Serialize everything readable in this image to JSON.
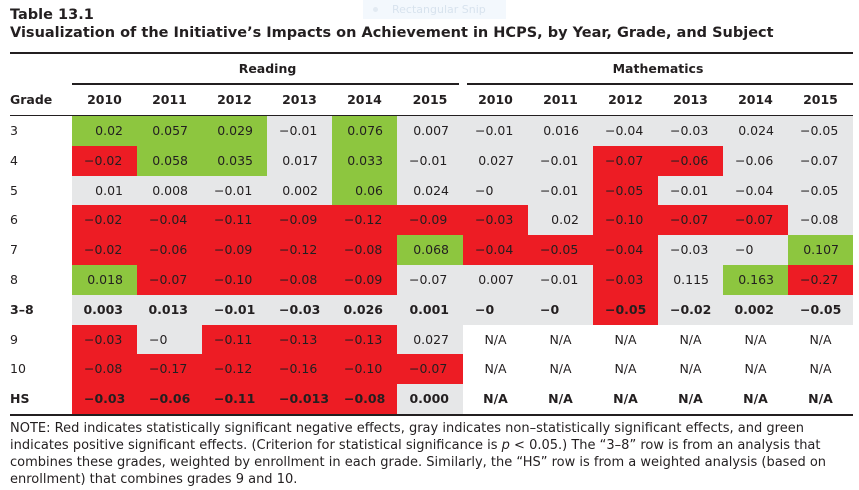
{
  "overlay": {
    "label": "Rectangular Snip"
  },
  "table": {
    "number": "Table 13.1",
    "title": "Visualization of the Initiative’s Impacts on Achievement in HCPS, by Year, Grade, and Subject",
    "grade_header": "Grade",
    "groups": [
      {
        "label": "Reading",
        "years": [
          "2010",
          "2011",
          "2012",
          "2013",
          "2014",
          "2015"
        ]
      },
      {
        "label": "Mathematics",
        "years": [
          "2010",
          "2011",
          "2012",
          "2013",
          "2014",
          "2015"
        ]
      }
    ],
    "legend_colors": {
      "negative": "#ed1c24",
      "nonsignificant": "#e6e7e8",
      "positive": "#8dc63f"
    },
    "rows": [
      {
        "grade": "3",
        "bold": false,
        "cells": [
          {
            "v": "0.02",
            "s": "pos"
          },
          {
            "v": "0.057",
            "s": "pos"
          },
          {
            "v": "0.029",
            "s": "pos"
          },
          {
            "v": "−0.01",
            "s": "ns"
          },
          {
            "v": "0.076",
            "s": "pos"
          },
          {
            "v": "0.007",
            "s": "ns"
          },
          {
            "v": "−0.01",
            "s": "ns"
          },
          {
            "v": "0.016",
            "s": "ns"
          },
          {
            "v": "−0.04",
            "s": "ns"
          },
          {
            "v": "−0.03",
            "s": "ns"
          },
          {
            "v": "0.024",
            "s": "ns"
          },
          {
            "v": "−0.05",
            "s": "ns"
          }
        ]
      },
      {
        "grade": "4",
        "bold": false,
        "cells": [
          {
            "v": "−0.02",
            "s": "neg"
          },
          {
            "v": "0.058",
            "s": "pos"
          },
          {
            "v": "0.035",
            "s": "pos"
          },
          {
            "v": "0.017",
            "s": "ns"
          },
          {
            "v": "0.033",
            "s": "pos"
          },
          {
            "v": "−0.01",
            "s": "ns"
          },
          {
            "v": "0.027",
            "s": "ns"
          },
          {
            "v": "−0.01",
            "s": "ns"
          },
          {
            "v": "−0.07",
            "s": "neg"
          },
          {
            "v": "−0.06",
            "s": "neg"
          },
          {
            "v": "−0.06",
            "s": "ns"
          },
          {
            "v": "−0.07",
            "s": "ns"
          }
        ]
      },
      {
        "grade": "5",
        "bold": false,
        "cells": [
          {
            "v": "0.01",
            "s": "ns"
          },
          {
            "v": "0.008",
            "s": "ns"
          },
          {
            "v": "−0.01",
            "s": "ns"
          },
          {
            "v": "0.002",
            "s": "ns"
          },
          {
            "v": "0.06",
            "s": "pos"
          },
          {
            "v": "0.024",
            "s": "ns"
          },
          {
            "v": "−0",
            "s": "ns"
          },
          {
            "v": "−0.01",
            "s": "ns"
          },
          {
            "v": "−0.05",
            "s": "neg"
          },
          {
            "v": "−0.01",
            "s": "ns"
          },
          {
            "v": "−0.04",
            "s": "ns"
          },
          {
            "v": "−0.05",
            "s": "ns"
          }
        ]
      },
      {
        "grade": "6",
        "bold": false,
        "cells": [
          {
            "v": "−0.02",
            "s": "neg"
          },
          {
            "v": "−0.04",
            "s": "neg"
          },
          {
            "v": "−0.11",
            "s": "neg"
          },
          {
            "v": "−0.09",
            "s": "neg"
          },
          {
            "v": "−0.12",
            "s": "neg"
          },
          {
            "v": "−0.09",
            "s": "neg"
          },
          {
            "v": "−0.03",
            "s": "neg"
          },
          {
            "v": "0.02",
            "s": "ns"
          },
          {
            "v": "−0.10",
            "s": "neg"
          },
          {
            "v": "−0.07",
            "s": "neg"
          },
          {
            "v": "−0.07",
            "s": "neg"
          },
          {
            "v": "−0.08",
            "s": "ns"
          }
        ]
      },
      {
        "grade": "7",
        "bold": false,
        "cells": [
          {
            "v": "−0.02",
            "s": "neg"
          },
          {
            "v": "−0.06",
            "s": "neg"
          },
          {
            "v": "−0.09",
            "s": "neg"
          },
          {
            "v": "−0.12",
            "s": "neg"
          },
          {
            "v": "−0.08",
            "s": "neg"
          },
          {
            "v": "0.068",
            "s": "pos"
          },
          {
            "v": "−0.04",
            "s": "neg"
          },
          {
            "v": "−0.05",
            "s": "neg"
          },
          {
            "v": "−0.04",
            "s": "neg"
          },
          {
            "v": "−0.03",
            "s": "ns"
          },
          {
            "v": "−0",
            "s": "ns"
          },
          {
            "v": "0.107",
            "s": "pos"
          }
        ]
      },
      {
        "grade": "8",
        "bold": false,
        "cells": [
          {
            "v": "0.018",
            "s": "pos"
          },
          {
            "v": "−0.07",
            "s": "neg"
          },
          {
            "v": "−0.10",
            "s": "neg"
          },
          {
            "v": "−0.08",
            "s": "neg"
          },
          {
            "v": "−0.09",
            "s": "neg"
          },
          {
            "v": "−0.07",
            "s": "ns"
          },
          {
            "v": "0.007",
            "s": "ns"
          },
          {
            "v": "−0.01",
            "s": "ns"
          },
          {
            "v": "−0.03",
            "s": "neg"
          },
          {
            "v": "0.115",
            "s": "ns"
          },
          {
            "v": "0.163",
            "s": "pos"
          },
          {
            "v": "−0.27",
            "s": "neg"
          }
        ]
      },
      {
        "grade": "3–8",
        "bold": true,
        "cells": [
          {
            "v": "0.003",
            "s": "ns"
          },
          {
            "v": "0.013",
            "s": "ns"
          },
          {
            "v": "−0.01",
            "s": "ns"
          },
          {
            "v": "−0.03",
            "s": "ns"
          },
          {
            "v": "0.026",
            "s": "ns"
          },
          {
            "v": "0.001",
            "s": "ns"
          },
          {
            "v": "−0",
            "s": "ns"
          },
          {
            "v": "−0",
            "s": "ns"
          },
          {
            "v": "−0.05",
            "s": "neg"
          },
          {
            "v": "−0.02",
            "s": "ns"
          },
          {
            "v": "0.002",
            "s": "ns"
          },
          {
            "v": "−0.05",
            "s": "ns"
          }
        ]
      },
      {
        "grade": "9",
        "bold": false,
        "cells": [
          {
            "v": "−0.03",
            "s": "neg"
          },
          {
            "v": "−0",
            "s": "ns"
          },
          {
            "v": "−0.11",
            "s": "neg"
          },
          {
            "v": "−0.13",
            "s": "neg"
          },
          {
            "v": "−0.13",
            "s": "neg"
          },
          {
            "v": "0.027",
            "s": "ns"
          },
          {
            "v": "N/A",
            "s": "na"
          },
          {
            "v": "N/A",
            "s": "na"
          },
          {
            "v": "N/A",
            "s": "na"
          },
          {
            "v": "N/A",
            "s": "na"
          },
          {
            "v": "N/A",
            "s": "na"
          },
          {
            "v": "N/A",
            "s": "na"
          }
        ]
      },
      {
        "grade": "10",
        "bold": false,
        "cells": [
          {
            "v": "−0.08",
            "s": "neg"
          },
          {
            "v": "−0.17",
            "s": "neg"
          },
          {
            "v": "−0.12",
            "s": "neg"
          },
          {
            "v": "−0.16",
            "s": "neg"
          },
          {
            "v": "−0.10",
            "s": "neg"
          },
          {
            "v": "−0.07",
            "s": "neg"
          },
          {
            "v": "N/A",
            "s": "na"
          },
          {
            "v": "N/A",
            "s": "na"
          },
          {
            "v": "N/A",
            "s": "na"
          },
          {
            "v": "N/A",
            "s": "na"
          },
          {
            "v": "N/A",
            "s": "na"
          },
          {
            "v": "N/A",
            "s": "na"
          }
        ]
      },
      {
        "grade": "HS",
        "bold": true,
        "cells": [
          {
            "v": "−0.03",
            "s": "neg"
          },
          {
            "v": "−0.06",
            "s": "neg"
          },
          {
            "v": "−0.11",
            "s": "neg"
          },
          {
            "v": "−0.013",
            "s": "neg"
          },
          {
            "v": "−0.08",
            "s": "neg"
          },
          {
            "v": "0.000",
            "s": "ns"
          },
          {
            "v": "N/A",
            "s": "na"
          },
          {
            "v": "N/A",
            "s": "na"
          },
          {
            "v": "N/A",
            "s": "na"
          },
          {
            "v": "N/A",
            "s": "na"
          },
          {
            "v": "N/A",
            "s": "na"
          },
          {
            "v": "N/A",
            "s": "na"
          }
        ]
      }
    ],
    "note": {
      "part1": "NOTE: Red indicates statistically significant negative effects, gray indicates non–statistically significant effects, and green indicates positive significant effects. (Criterion for statistical significance is ",
      "p": "p",
      "part2": " < 0.05.) The “3–8” row is from an analysis that combines these grades, weighted by enrollment in each grade. Similarly, the “HS” row is from a weighted analysis (based on enrollment) that combines grades 9 and 10."
    }
  }
}
